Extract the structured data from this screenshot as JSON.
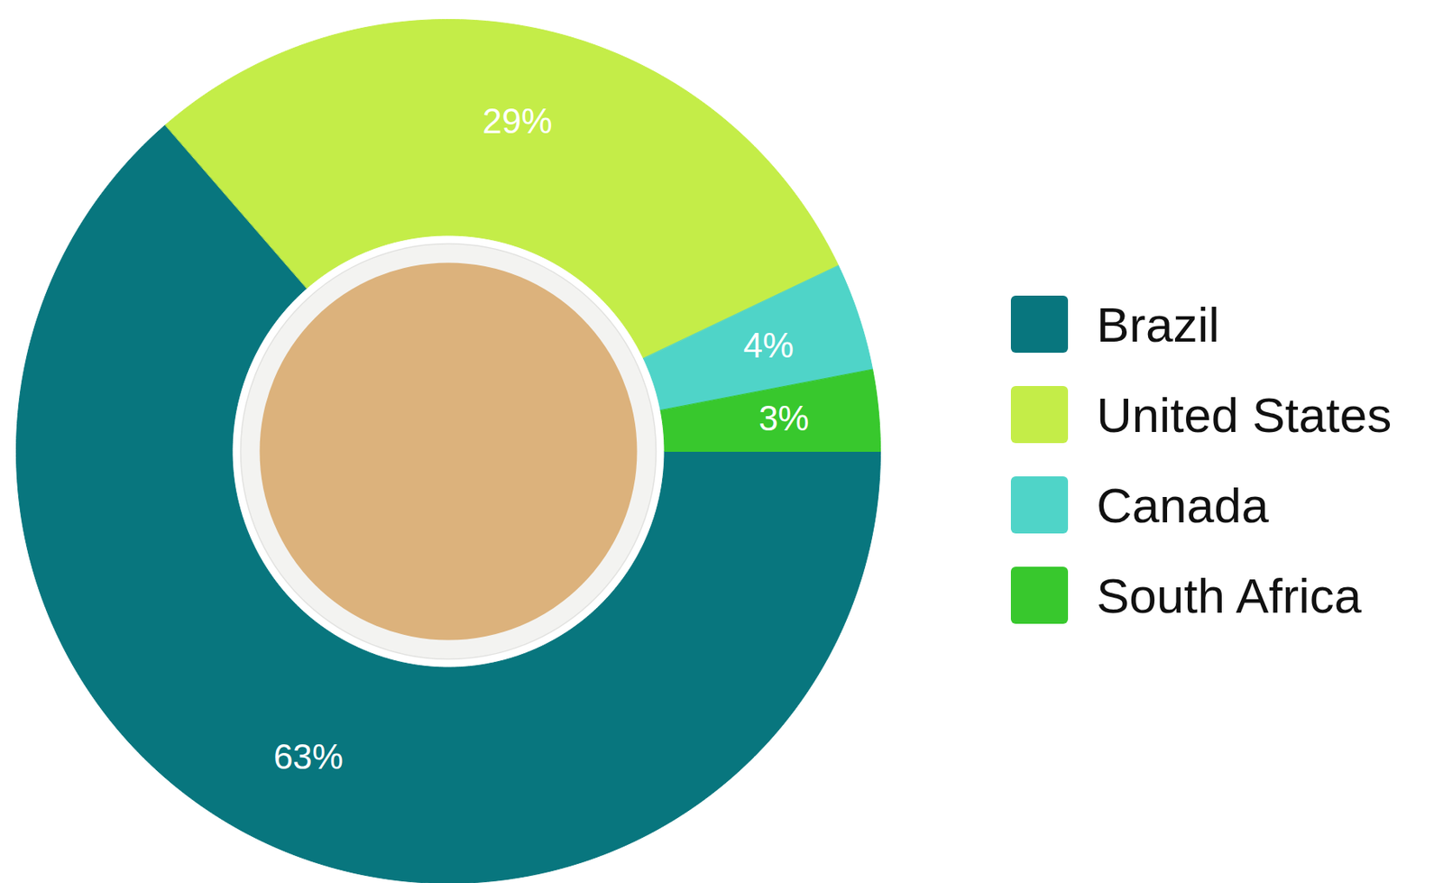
{
  "chart_data": {
    "type": "pie",
    "categories": [
      "Brazil",
      "United States",
      "Canada",
      "South Africa"
    ],
    "values": [
      63,
      29,
      4,
      3
    ],
    "value_labels": [
      "63%",
      "29%",
      "4%",
      "3%"
    ],
    "colors": [
      "#08767e",
      "#c4ed48",
      "#4fd4c8",
      "#38c82d"
    ],
    "data_labels": true,
    "legend": "right"
  }
}
